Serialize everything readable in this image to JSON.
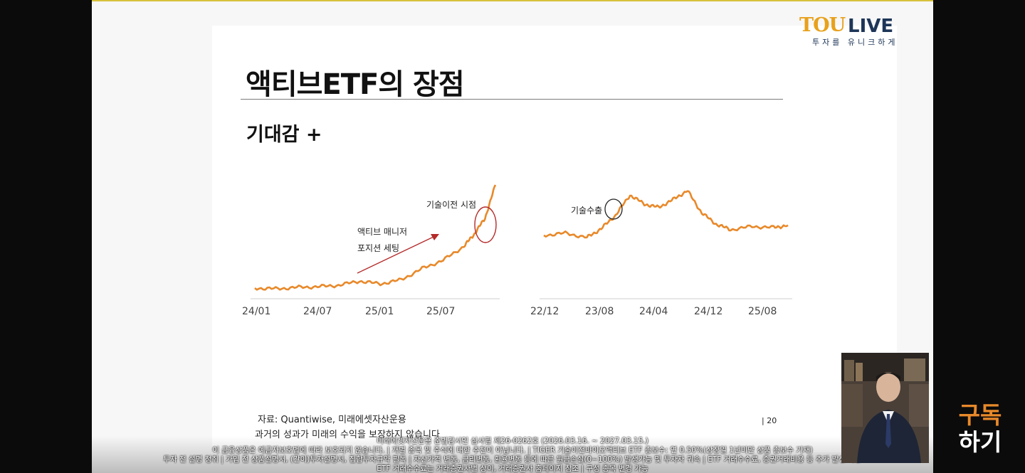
{
  "slide": {
    "title": "액티브ETF의 장점",
    "subtitle": "기대감 +",
    "source": "자료: Quantiwise, 미래에셋자산운용",
    "caution": "과거의 성과가 미래의 수익을 보장하지 않습니다",
    "page_number": "| 20"
  },
  "logo": {
    "word_left": "TOU",
    "word_right": "LIVE",
    "tagline": "투자를 유니크하게"
  },
  "subscribe": {
    "line1": "구독",
    "line2": "하기"
  },
  "disclaimer": {
    "line1": "미래에셋자산운용 준법감시인 심사필 제26-0262호 (2026.03.16. ~ 2027.03.15.)",
    "line2": "이 금융상품은 예금자보호법에 따라 보호되지 않습니다. | 개별 종목 및 주식에 대한 추천이 아닙니다. | TIGER 기술이전바이오액티브 ETF 총보수: 연 0.50%(상장일 1년미만 상품 총보수 기재)",
    "line3": "투자 전 설명 청취 | 가입 전 상품설명서, (간이)투자설명서, 집합투자규약 필독 | 자산가격 변동, 금리변동, 환율변동 등에 따른 원금손실(0~100%) 발생가능 및 투자자 귀속 | ETF 거래수수료, 증권거래비용 등 추가 발생 가능",
    "line4": "ETF 거래수수료는 거래증권사별 상이, 거래증권사 홈페이지 참조 | 구성 종목 변경 가능"
  },
  "colors": {
    "line": "#e8892a",
    "arrow": "#b52a2a",
    "circle_left": "#b52a2a",
    "circle_right": "#222222",
    "logo_orange": "#e8a11c",
    "logo_navy": "#1d3557",
    "subscribe": "#e8892a"
  },
  "chart_data": [
    {
      "type": "line",
      "x_ticks": [
        "24/01",
        "24/07",
        "25/01",
        "25/07"
      ],
      "annotations": [
        "액티브 매니저",
        "포지션 세팅",
        "기술이전 시점"
      ],
      "series": [
        {
          "values": [
            [
              "24/01",
              100
            ],
            [
              "24/03",
              99
            ],
            [
              "24/05",
              101
            ],
            [
              "24/07",
              102
            ],
            [
              "24/09",
              104
            ],
            [
              "24/11",
              110
            ],
            [
              "25/01",
              106
            ],
            [
              "25/03",
              112
            ],
            [
              "25/05",
              128
            ],
            [
              "25/07",
              140
            ],
            [
              "25/09",
              160
            ],
            [
              "25/10",
              178
            ],
            [
              "25/11",
              200
            ],
            [
              "25/12",
              248
            ]
          ]
        }
      ]
    },
    {
      "type": "line",
      "x_ticks": [
        "22/12",
        "23/08",
        "24/04",
        "24/12",
        "25/08"
      ],
      "annotations": [
        "기술수출"
      ],
      "series": [
        {
          "values": [
            [
              "22/12",
              100
            ],
            [
              "23/03",
              102
            ],
            [
              "23/06",
              98
            ],
            [
              "23/08",
              106
            ],
            [
              "23/10",
              118
            ],
            [
              "23/12",
              136
            ],
            [
              "24/02",
              128
            ],
            [
              "24/04",
              125
            ],
            [
              "24/06",
              132
            ],
            [
              "24/08",
              140
            ],
            [
              "24/10",
              120
            ],
            [
              "24/12",
              110
            ],
            [
              "25/02",
              105
            ],
            [
              "25/05",
              108
            ],
            [
              "25/08",
              107
            ],
            [
              "25/10",
              109
            ]
          ]
        }
      ]
    }
  ]
}
